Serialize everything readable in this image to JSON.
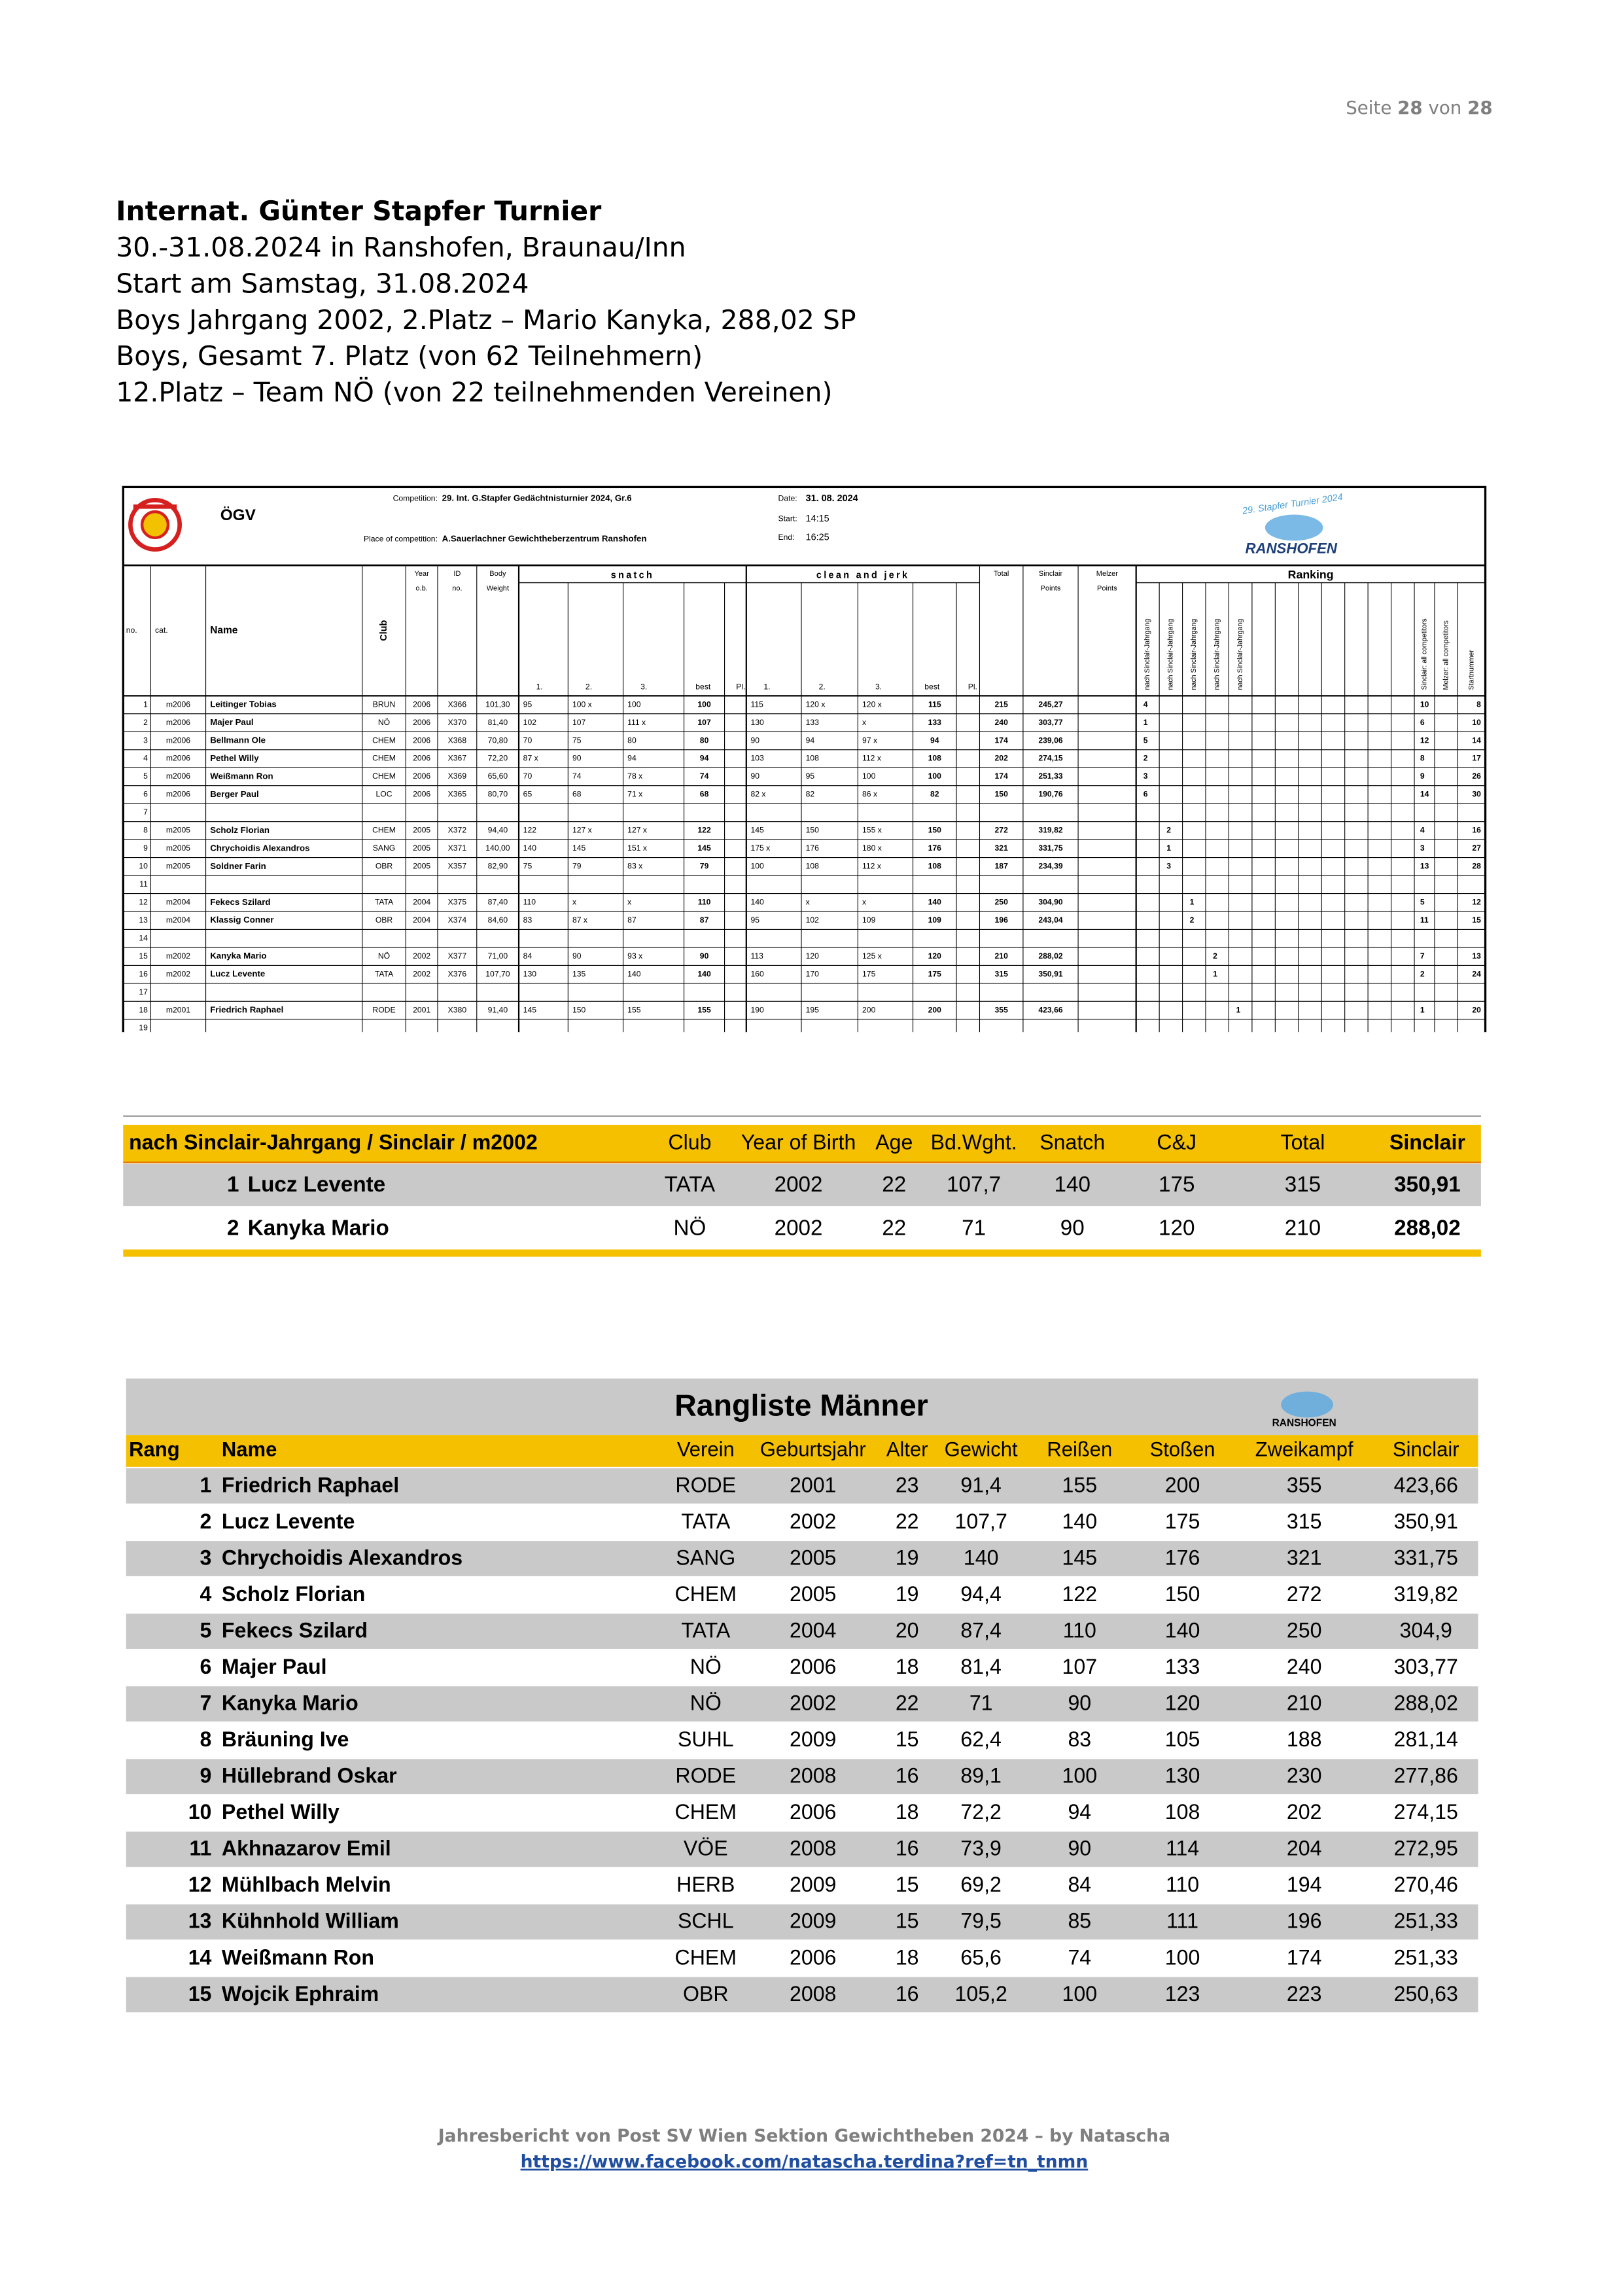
{
  "header": {
    "page_label": "Seite",
    "page_current": "28",
    "page_of": "von",
    "page_total": "28"
  },
  "intro": {
    "title": "Internat. Günter Stapfer Turnier",
    "lines": [
      "30.-31.08.2024 in Ranshofen, Braunau/Inn",
      "Start am Samstag, 31.08.2024",
      "Boys Jahrgang 2002, 2.Platz – Mario Kanyka, 288,02 SP",
      "Boys, Gesamt 7. Platz (von 62 Teilnehmern)",
      "12.Platz – Team NÖ (von 22 teilnehmenden Vereinen)"
    ]
  },
  "protocol": {
    "federation": "ÖGV",
    "competition_label": "Competition:",
    "competition": "29. Int. G.Stapfer Gedächtnisturnier 2024, Gr.6",
    "place_label": "Place of competition:",
    "place": "A.Sauerlachner Gewichtheberzentrum Ranshofen",
    "date_label": "Date:",
    "date": "31. 08. 2024",
    "start_label": "Start:",
    "start": "14:15",
    "end_label": "End:",
    "end": "16:25",
    "logo_arc": "29. Stapfer Turnier 2024",
    "logo_name": "RANSHOFEN",
    "columns": {
      "no": "no.",
      "cat": "cat.",
      "name": "Name",
      "club": "Club",
      "year": [
        "Year",
        "o.b."
      ],
      "id": [
        "ID",
        "no."
      ],
      "bw": [
        "Body",
        "Weight"
      ],
      "snatch": "snatch",
      "cj": "clean and jerk",
      "attempts": [
        "1.",
        "2.",
        "3.",
        "best",
        "Pl."
      ],
      "total": "Total",
      "sinclair": [
        "Sinclair",
        "Points"
      ],
      "melzer": [
        "Melzer",
        "Points"
      ],
      "ranking": "Ranking",
      "ranking_jahrgang": "nach Sinclair-Jahrgang",
      "ranking_sinclair": "Sinclair: all competitors",
      "ranking_melzer": "Melzer: all competitors",
      "ranking_start": "Startnummer"
    },
    "rows": [
      {
        "no": "1",
        "cat": "m2006",
        "name": "Leitinger Tobias",
        "club": "BRUN",
        "year": "2006",
        "id": "X366",
        "bw": "101,30",
        "snatch": [
          "95",
          "100 x",
          "100"
        ],
        "snatch_best": "100",
        "cj": [
          "115",
          "120 x",
          "120 x"
        ],
        "cj_best": "115",
        "total": "215",
        "sinclair": "245,27",
        "rank_jahrgang": "4",
        "rank_sinclair": "10",
        "start": "8"
      },
      {
        "no": "2",
        "cat": "m2006",
        "name": "Majer Paul",
        "club": "NÖ",
        "year": "2006",
        "id": "X370",
        "bw": "81,40",
        "snatch": [
          "102",
          "107",
          "111 x"
        ],
        "snatch_best": "107",
        "cj": [
          "130",
          "133",
          "x"
        ],
        "cj_best": "133",
        "total": "240",
        "sinclair": "303,77",
        "rank_jahrgang": "1",
        "rank_sinclair": "6",
        "start": "10"
      },
      {
        "no": "3",
        "cat": "m2006",
        "name": "Bellmann Ole",
        "club": "CHEM",
        "year": "2006",
        "id": "X368",
        "bw": "70,80",
        "snatch": [
          "70",
          "75",
          "80"
        ],
        "snatch_best": "80",
        "cj": [
          "90",
          "94",
          "97 x"
        ],
        "cj_best": "94",
        "total": "174",
        "sinclair": "239,06",
        "rank_jahrgang": "5",
        "rank_sinclair": "12",
        "start": "14"
      },
      {
        "no": "4",
        "cat": "m2006",
        "name": "Pethel Willy",
        "club": "CHEM",
        "year": "2006",
        "id": "X367",
        "bw": "72,20",
        "snatch": [
          "87 x",
          "90",
          "94"
        ],
        "snatch_best": "94",
        "cj": [
          "103",
          "108",
          "112 x"
        ],
        "cj_best": "108",
        "total": "202",
        "sinclair": "274,15",
        "rank_jahrgang": "2",
        "rank_sinclair": "8",
        "start": "17"
      },
      {
        "no": "5",
        "cat": "m2006",
        "name": "Weißmann Ron",
        "club": "CHEM",
        "year": "2006",
        "id": "X369",
        "bw": "65,60",
        "snatch": [
          "70",
          "74",
          "78 x"
        ],
        "snatch_best": "74",
        "cj": [
          "90",
          "95",
          "100"
        ],
        "cj_best": "100",
        "total": "174",
        "sinclair": "251,33",
        "rank_jahrgang": "3",
        "rank_sinclair": "9",
        "start": "26"
      },
      {
        "no": "6",
        "cat": "m2006",
        "name": "Berger Paul",
        "club": "LOC",
        "year": "2006",
        "id": "X365",
        "bw": "80,70",
        "snatch": [
          "65",
          "68",
          "71 x"
        ],
        "snatch_best": "68",
        "cj": [
          "82 x",
          "82",
          "86 x"
        ],
        "cj_best": "82",
        "total": "150",
        "sinclair": "190,76",
        "rank_jahrgang": "6",
        "rank_sinclair": "14",
        "start": "30"
      },
      {
        "no": "7"
      },
      {
        "no": "8",
        "cat": "m2005",
        "name": "Scholz Florian",
        "club": "CHEM",
        "year": "2005",
        "id": "X372",
        "bw": "94,40",
        "snatch": [
          "122",
          "127 x",
          "127 x"
        ],
        "snatch_best": "122",
        "cj": [
          "145",
          "150",
          "155 x"
        ],
        "cj_best": "150",
        "total": "272",
        "sinclair": "319,82",
        "rank_jahrgang": "2",
        "rank_sinclair": "4",
        "start": "16"
      },
      {
        "no": "9",
        "cat": "m2005",
        "name": "Chrychoidis Alexandros",
        "club": "SANG",
        "year": "2005",
        "id": "X371",
        "bw": "140,00",
        "snatch": [
          "140",
          "145",
          "151 x"
        ],
        "snatch_best": "145",
        "cj": [
          "175 x",
          "176",
          "180 x"
        ],
        "cj_best": "176",
        "total": "321",
        "sinclair": "331,75",
        "rank_jahrgang": "1",
        "rank_sinclair": "3",
        "start": "27"
      },
      {
        "no": "10",
        "cat": "m2005",
        "name": "Soldner Farin",
        "club": "OBR",
        "year": "2005",
        "id": "X357",
        "bw": "82,90",
        "snatch": [
          "75",
          "79",
          "83 x"
        ],
        "snatch_best": "79",
        "cj": [
          "100",
          "108",
          "112 x"
        ],
        "cj_best": "108",
        "total": "187",
        "sinclair": "234,39",
        "rank_jahrgang": "3",
        "rank_sinclair": "13",
        "start": "28"
      },
      {
        "no": "11"
      },
      {
        "no": "12",
        "cat": "m2004",
        "name": "Fekecs Szilard",
        "club": "TATA",
        "year": "2004",
        "id": "X375",
        "bw": "87,40",
        "snatch": [
          "110",
          "x",
          "x"
        ],
        "snatch_best": "110",
        "cj": [
          "140",
          "x",
          "x"
        ],
        "cj_best": "140",
        "total": "250",
        "sinclair": "304,90",
        "rank_jahrgang": "1",
        "rank_sinclair": "5",
        "start": "12"
      },
      {
        "no": "13",
        "cat": "m2004",
        "name": "Klassig Conner",
        "club": "OBR",
        "year": "2004",
        "id": "X374",
        "bw": "84,60",
        "snatch": [
          "83",
          "87 x",
          "87"
        ],
        "snatch_best": "87",
        "cj": [
          "95",
          "102",
          "109"
        ],
        "cj_best": "109",
        "total": "196",
        "sinclair": "243,04",
        "rank_jahrgang": "2",
        "rank_sinclair": "11",
        "start": "15"
      },
      {
        "no": "14"
      },
      {
        "no": "15",
        "cat": "m2002",
        "name": "Kanyka Mario",
        "club": "NÖ",
        "year": "2002",
        "id": "X377",
        "bw": "71,00",
        "snatch": [
          "84",
          "90",
          "93 x"
        ],
        "snatch_best": "90",
        "cj": [
          "113",
          "120",
          "125 x"
        ],
        "cj_best": "120",
        "total": "210",
        "sinclair": "288,02",
        "rank_jahrgang": "2",
        "rank_sinclair": "7",
        "start": "13"
      },
      {
        "no": "16",
        "cat": "m2002",
        "name": "Lucz Levente",
        "club": "TATA",
        "year": "2002",
        "id": "X376",
        "bw": "107,70",
        "snatch": [
          "130",
          "135",
          "140"
        ],
        "snatch_best": "140",
        "cj": [
          "160",
          "170",
          "175"
        ],
        "cj_best": "175",
        "total": "315",
        "sinclair": "350,91",
        "rank_jahrgang": "1",
        "rank_sinclair": "2",
        "start": "24"
      },
      {
        "no": "17"
      },
      {
        "no": "18",
        "cat": "m2001",
        "name": "Friedrich Raphael",
        "club": "RODE",
        "year": "2001",
        "id": "X380",
        "bw": "91,40",
        "snatch": [
          "145",
          "150",
          "155"
        ],
        "snatch_best": "155",
        "cj": [
          "190",
          "195",
          "200"
        ],
        "cj_best": "200",
        "total": "355",
        "sinclair": "423,66",
        "rank_jahrgang": "1",
        "rank_sinclair": "1",
        "start": "20"
      },
      {
        "no": "19"
      }
    ]
  },
  "sinclair_table": {
    "columns": [
      "nach Sinclair-Jahrgang / Sinclair / m2002",
      "Club",
      "Year of Birth",
      "Age",
      "Bd.Wght.",
      "Snatch",
      "C&J",
      "Total",
      "Sinclair"
    ],
    "rows": [
      [
        "1",
        "Lucz Levente",
        "TATA",
        "2002",
        "22",
        "107,7",
        "140",
        "175",
        "315",
        "350,91"
      ],
      [
        "2",
        "Kanyka Mario",
        "NÖ",
        "2002",
        "22",
        "71",
        "90",
        "120",
        "210",
        "288,02"
      ]
    ]
  },
  "rangliste": {
    "title": "Rangliste Männer",
    "logo": "RANSHOFEN",
    "columns": [
      "Rang",
      "Name",
      "Verein",
      "Geburtsjahr",
      "Alter",
      "Gewicht",
      "Reißen",
      "Stoßen",
      "Zweikampf",
      "Sinclair"
    ],
    "rows": [
      [
        "1",
        "Friedrich Raphael",
        "RODE",
        "2001",
        "23",
        "91,4",
        "155",
        "200",
        "355",
        "423,66"
      ],
      [
        "2",
        "Lucz Levente",
        "TATA",
        "2002",
        "22",
        "107,7",
        "140",
        "175",
        "315",
        "350,91"
      ],
      [
        "3",
        "Chrychoidis Alexandros",
        "SANG",
        "2005",
        "19",
        "140",
        "145",
        "176",
        "321",
        "331,75"
      ],
      [
        "4",
        "Scholz Florian",
        "CHEM",
        "2005",
        "19",
        "94,4",
        "122",
        "150",
        "272",
        "319,82"
      ],
      [
        "5",
        "Fekecs Szilard",
        "TATA",
        "2004",
        "20",
        "87,4",
        "110",
        "140",
        "250",
        "304,9"
      ],
      [
        "6",
        "Majer Paul",
        "NÖ",
        "2006",
        "18",
        "81,4",
        "107",
        "133",
        "240",
        "303,77"
      ],
      [
        "7",
        "Kanyka Mario",
        "NÖ",
        "2002",
        "22",
        "71",
        "90",
        "120",
        "210",
        "288,02"
      ],
      [
        "8",
        "Bräuning Ive",
        "SUHL",
        "2009",
        "15",
        "62,4",
        "83",
        "105",
        "188",
        "281,14"
      ],
      [
        "9",
        "Hüllebrand Oskar",
        "RODE",
        "2008",
        "16",
        "89,1",
        "100",
        "130",
        "230",
        "277,86"
      ],
      [
        "10",
        "Pethel Willy",
        "CHEM",
        "2006",
        "18",
        "72,2",
        "94",
        "108",
        "202",
        "274,15"
      ],
      [
        "11",
        "Akhnazarov Emil",
        "VÖE",
        "2008",
        "16",
        "73,9",
        "90",
        "114",
        "204",
        "272,95"
      ],
      [
        "12",
        "Mühlbach Melvin",
        "HERB",
        "2009",
        "15",
        "69,2",
        "84",
        "110",
        "194",
        "270,46"
      ],
      [
        "13",
        "Kühnhold William",
        "SCHL",
        "2009",
        "15",
        "79,5",
        "85",
        "111",
        "196",
        "251,33"
      ],
      [
        "14",
        "Weißmann Ron",
        "CHEM",
        "2006",
        "18",
        "65,6",
        "74",
        "100",
        "174",
        "251,33"
      ],
      [
        "15",
        "Wojcik Ephraim",
        "OBR",
        "2008",
        "16",
        "105,2",
        "100",
        "123",
        "223",
        "250,63"
      ]
    ]
  },
  "footer": {
    "text": "Jahresbericht von Post SV Wien Sektion Gewichtheben 2024 – by Natascha",
    "link": "https://www.facebook.com/natascha.terdina?ref=tn_tnmn"
  }
}
